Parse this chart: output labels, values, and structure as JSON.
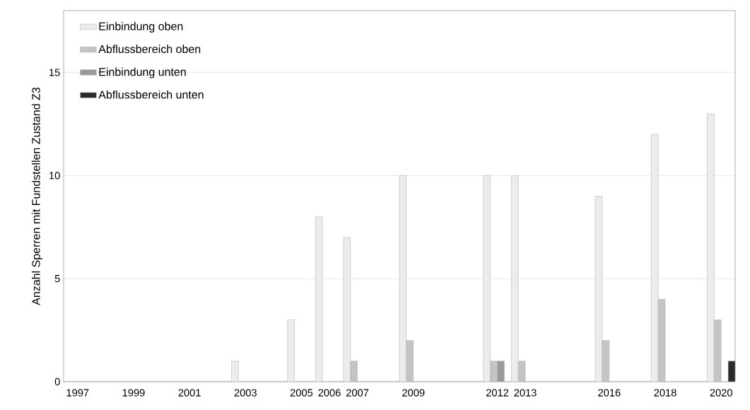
{
  "chart_data": {
    "type": "bar",
    "ylabel": "Anzahl Sperren mit Fundstellen Zustand Z3",
    "x": [
      2003,
      2005,
      2006,
      2007,
      2009,
      2012,
      2013,
      2016,
      2018,
      2020
    ],
    "series": [
      {
        "name": "Einbindung oben",
        "color": "#ececec",
        "values": [
          1,
          3,
          8,
          7,
          10,
          10,
          10,
          9,
          12,
          13
        ]
      },
      {
        "name": "Abflussbereich oben",
        "color": "#c4c4c4",
        "values": [
          null,
          null,
          null,
          1,
          2,
          1,
          1,
          2,
          4,
          3
        ]
      },
      {
        "name": "Einbindung unten",
        "color": "#9a9a9a",
        "values": [
          null,
          null,
          null,
          null,
          null,
          1,
          null,
          null,
          null,
          null
        ]
      },
      {
        "name": "Abflussbereich unten",
        "color": "#2b2b2b",
        "values": [
          null,
          null,
          null,
          null,
          null,
          null,
          null,
          null,
          null,
          1
        ]
      }
    ],
    "xlim": [
      1996.5,
      2020.5
    ],
    "xticks": [
      1997,
      1999,
      2001,
      2003,
      2005,
      2006,
      2007,
      2009,
      2012,
      2013,
      2016,
      2018,
      2020
    ],
    "ylim": [
      0,
      18
    ],
    "yticks": [
      0,
      5,
      10,
      15
    ],
    "grid": "y",
    "legend": "top left"
  }
}
